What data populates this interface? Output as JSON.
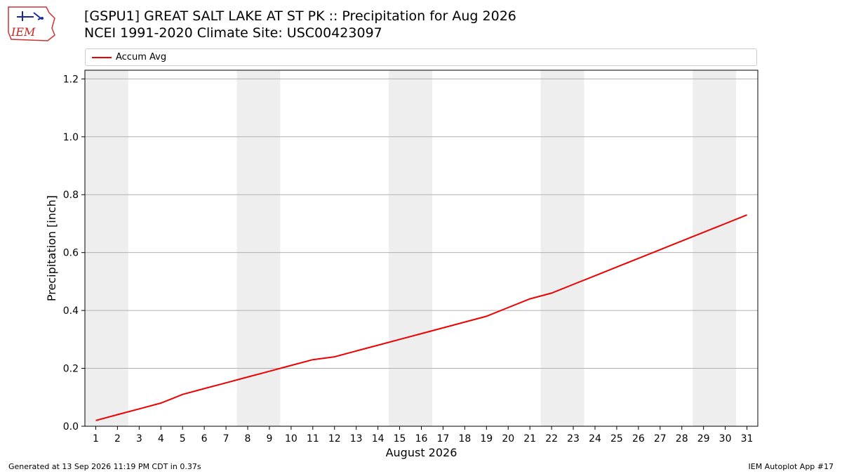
{
  "header": {
    "title_line1": "[GSPU1] GREAT SALT LAKE AT ST PK :: Precipitation for Aug 2026",
    "title_line2": "NCEI 1991-2020 Climate Site: USC00423097",
    "logo_text": "IEM"
  },
  "footer": {
    "generated": "Generated at 13 Sep 2026 11:19 PM CDT in 0.37s",
    "app": "IEM Autoplot App #17"
  },
  "chart_data": {
    "type": "line",
    "xlabel": "August 2026",
    "ylabel": "Precipitation [inch]",
    "xlim": [
      0.5,
      31.5
    ],
    "ylim": [
      0,
      1.23
    ],
    "x": [
      1,
      2,
      3,
      4,
      5,
      6,
      7,
      8,
      9,
      10,
      11,
      12,
      13,
      14,
      15,
      16,
      17,
      18,
      19,
      20,
      21,
      22,
      23,
      24,
      25,
      26,
      27,
      28,
      29,
      30,
      31
    ],
    "x_tick_labels": [
      "1",
      "2",
      "3",
      "4",
      "5",
      "6",
      "7",
      "8",
      "9",
      "10",
      "11",
      "12",
      "13",
      "14",
      "15",
      "16",
      "17",
      "18",
      "19",
      "20",
      "21",
      "22",
      "23",
      "24",
      "25",
      "26",
      "27",
      "28",
      "29",
      "30",
      "31"
    ],
    "y_ticks": [
      0.0,
      0.2,
      0.4,
      0.6,
      0.8,
      1.0,
      1.2
    ],
    "y_tick_labels": [
      "0.0",
      "0.2",
      "0.4",
      "0.6",
      "0.8",
      "1.0",
      "1.2"
    ],
    "grid": "horizontal",
    "legend_position": "top",
    "weekend_shading": [
      [
        1,
        2
      ],
      [
        8,
        9
      ],
      [
        15,
        16
      ],
      [
        22,
        23
      ],
      [
        29,
        30
      ]
    ],
    "shading_color": "#eeeeee",
    "series": [
      {
        "name": "Accum Avg",
        "color": "#ee0000",
        "values": [
          0.02,
          0.04,
          0.06,
          0.08,
          0.11,
          0.13,
          0.15,
          0.17,
          0.19,
          0.21,
          0.23,
          0.24,
          0.26,
          0.28,
          0.3,
          0.32,
          0.34,
          0.36,
          0.38,
          0.41,
          0.44,
          0.46,
          0.49,
          0.52,
          0.55,
          0.58,
          0.61,
          0.64,
          0.67,
          0.7,
          0.73
        ]
      }
    ]
  }
}
